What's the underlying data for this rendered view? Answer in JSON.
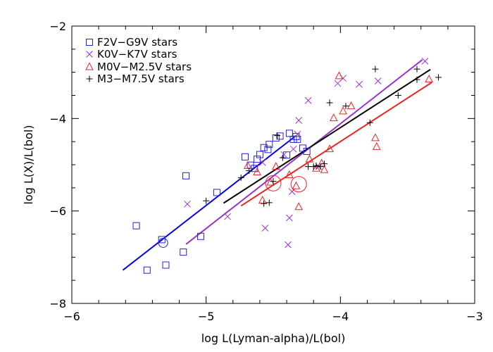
{
  "chart_data": {
    "type": "scatter",
    "xlabel": "log L(Lyman-alpha)/L(bol)",
    "ylabel": "log L(X)/L(bol)",
    "xlim": [
      -6,
      -3
    ],
    "ylim": [
      -8,
      -2
    ],
    "xticks": [
      -6,
      -5,
      -4,
      -3
    ],
    "yticks": [
      -8,
      -6,
      -4,
      -2
    ],
    "xtick_labels": [
      "−6",
      "−5",
      "−4",
      "−3"
    ],
    "ytick_labels": [
      "−8",
      "−6",
      "−4",
      "−2"
    ],
    "grid": false,
    "legend_position": "top-left",
    "series": [
      {
        "name": "F2V−G9V stars",
        "marker": "square",
        "color": "#2222dd",
        "points": [
          [
            -5.52,
            -6.32
          ],
          [
            -5.44,
            -7.28
          ],
          [
            -5.33,
            -6.62
          ],
          [
            -5.3,
            -7.17
          ],
          [
            -5.17,
            -6.89
          ],
          [
            -5.15,
            -5.24
          ],
          [
            -5.04,
            -6.55
          ],
          [
            -4.92,
            -5.6
          ],
          [
            -4.71,
            -4.83
          ],
          [
            -4.67,
            -5.01
          ],
          [
            -4.64,
            -5.08
          ],
          [
            -4.62,
            -4.88
          ],
          [
            -4.6,
            -4.78
          ],
          [
            -4.57,
            -4.63
          ],
          [
            -4.54,
            -4.67
          ],
          [
            -4.53,
            -4.56
          ],
          [
            -4.48,
            -4.42
          ],
          [
            -4.45,
            -4.38
          ],
          [
            -4.4,
            -4.79
          ],
          [
            -4.38,
            -4.32
          ],
          [
            -4.35,
            -4.45
          ],
          [
            -4.33,
            -4.39
          ],
          [
            -4.32,
            -4.45
          ],
          [
            -4.28,
            -4.64
          ],
          [
            -4.25,
            -4.71
          ]
        ]
      },
      {
        "name": "K0V−K7V stars",
        "marker": "x",
        "color": "#9933cc",
        "points": [
          [
            -5.14,
            -5.85
          ],
          [
            -4.84,
            -6.12
          ],
          [
            -4.58,
            -4.95
          ],
          [
            -4.56,
            -6.37
          ],
          [
            -4.42,
            -4.78
          ],
          [
            -4.39,
            -6.73
          ],
          [
            -4.38,
            -6.15
          ],
          [
            -4.36,
            -5.58
          ],
          [
            -4.35,
            -4.66
          ],
          [
            -4.32,
            -4.34
          ],
          [
            -4.31,
            -4.04
          ],
          [
            -4.24,
            -3.61
          ],
          [
            -4.16,
            -5.04
          ],
          [
            -4.02,
            -3.24
          ],
          [
            -3.98,
            -3.13
          ],
          [
            -3.86,
            -3.26
          ],
          [
            -3.72,
            -3.19
          ],
          [
            -3.37,
            -2.76
          ]
        ]
      },
      {
        "name": "M0V−M2.5V stars",
        "marker": "triangle",
        "color": "#ee2222",
        "points": [
          [
            -4.69,
            -5.02
          ],
          [
            -4.62,
            -5.16
          ],
          [
            -4.58,
            -5.77
          ],
          [
            -4.52,
            -5.38
          ],
          [
            -4.48,
            -5.04
          ],
          [
            -4.38,
            -5.22
          ],
          [
            -4.33,
            -5.46
          ],
          [
            -4.31,
            -5.91
          ],
          [
            -4.23,
            -4.88
          ],
          [
            -4.18,
            -5.08
          ],
          [
            -4.14,
            -4.97
          ],
          [
            -4.12,
            -5.11
          ],
          [
            -4.08,
            -4.66
          ],
          [
            -4.05,
            -3.99
          ],
          [
            -4.01,
            -3.08
          ],
          [
            -3.98,
            -3.84
          ],
          [
            -3.92,
            -3.73
          ],
          [
            -3.74,
            -4.42
          ],
          [
            -3.73,
            -4.61
          ],
          [
            -3.34,
            -3.15
          ]
        ]
      },
      {
        "name": "M3−M7.5V stars",
        "marker": "plus",
        "color": "#000000",
        "points": [
          [
            -5.0,
            -5.78
          ],
          [
            -4.74,
            -5.28
          ],
          [
            -4.68,
            -5.13
          ],
          [
            -4.57,
            -5.84
          ],
          [
            -4.53,
            -5.82
          ],
          [
            -4.5,
            -5.36
          ],
          [
            -4.47,
            -4.37
          ],
          [
            -4.43,
            -4.85
          ],
          [
            -4.24,
            -5.04
          ],
          [
            -4.2,
            -5.04
          ],
          [
            -4.18,
            -5.02
          ],
          [
            -4.15,
            -5.04
          ],
          [
            -4.12,
            -4.98
          ],
          [
            -4.08,
            -3.66
          ],
          [
            -3.96,
            -3.73
          ],
          [
            -3.78,
            -4.09
          ],
          [
            -3.74,
            -2.93
          ],
          [
            -3.57,
            -3.5
          ],
          [
            -3.43,
            -3.16
          ],
          [
            -3.43,
            -2.93
          ],
          [
            -3.27,
            -3.11
          ]
        ]
      }
    ],
    "fit_lines": [
      {
        "color": "#0000ee",
        "from": [
          -5.62,
          -7.28
        ],
        "to": [
          -4.33,
          -4.37
        ]
      },
      {
        "color": "#9933cc",
        "from": [
          -5.15,
          -6.72
        ],
        "to": [
          -3.39,
          -2.73
        ]
      },
      {
        "color": "#000000",
        "from": [
          -4.87,
          -5.83
        ],
        "to": [
          -3.33,
          -2.94
        ]
      },
      {
        "color": "#ee2222",
        "from": [
          -4.74,
          -5.89
        ],
        "to": [
          -3.32,
          -3.22
        ]
      }
    ],
    "highlight_circles": [
      {
        "color": "#2222dd",
        "center": [
          -5.32,
          -6.69
        ]
      },
      {
        "color": "#ee2222",
        "center": [
          -4.5,
          -5.4
        ]
      },
      {
        "color": "#ee2222",
        "center": [
          -4.31,
          -5.42
        ]
      }
    ]
  }
}
